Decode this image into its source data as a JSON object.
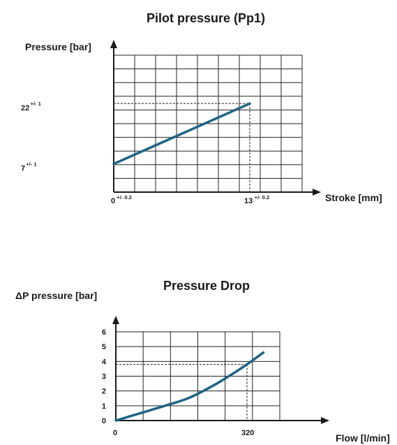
{
  "colors": {
    "series": "#1f6385",
    "axis": "#1a1a1a",
    "grid": "#222222"
  },
  "chart_data": [
    {
      "type": "line",
      "title": "Pilot pressure (Pp1)",
      "xlabel": "Stroke [mm]",
      "ylabel": "Pressure [bar]",
      "grid": true,
      "xlim": [
        0,
        18
      ],
      "ylim": [
        0,
        34
      ],
      "x_ticks": [
        {
          "value": 0,
          "label": "0",
          "tol": "+/- 0.2"
        },
        {
          "value": 13,
          "label": "13",
          "tol": "+/- 0.2"
        }
      ],
      "y_ticks": [
        {
          "value": 7,
          "label": "7",
          "tol": "+/- 1"
        },
        {
          "value": 22,
          "label": "22",
          "tol": "+/- 1"
        }
      ],
      "series": [
        {
          "x": [
            0,
            13
          ],
          "y": [
            7,
            22
          ]
        }
      ],
      "guides": [
        {
          "x": 13,
          "y": 22
        }
      ]
    },
    {
      "type": "line",
      "title": "Pressure Drop",
      "xlabel": "Flow [l/min]",
      "ylabel": "ΔP pressure [bar]",
      "grid": true,
      "xlim": [
        0,
        400
      ],
      "ylim": [
        0,
        6
      ],
      "x_ticks": [
        {
          "value": 0,
          "label": "0"
        },
        {
          "value": 320,
          "label": "320"
        }
      ],
      "y_ticks": [
        {
          "value": 0,
          "label": "0"
        },
        {
          "value": 1,
          "label": "1"
        },
        {
          "value": 2,
          "label": "2"
        },
        {
          "value": 3,
          "label": "3"
        },
        {
          "value": 4,
          "label": "4"
        },
        {
          "value": 5,
          "label": "5"
        },
        {
          "value": 6,
          "label": "6"
        }
      ],
      "series": [
        {
          "x": [
            0,
            60,
            120,
            180,
            240,
            290,
            320,
            360
          ],
          "y": [
            0,
            0.5,
            1.0,
            1.55,
            2.4,
            3.25,
            3.8,
            4.6
          ]
        }
      ],
      "guides": [
        {
          "x": 320,
          "y": 3.8
        }
      ]
    }
  ]
}
